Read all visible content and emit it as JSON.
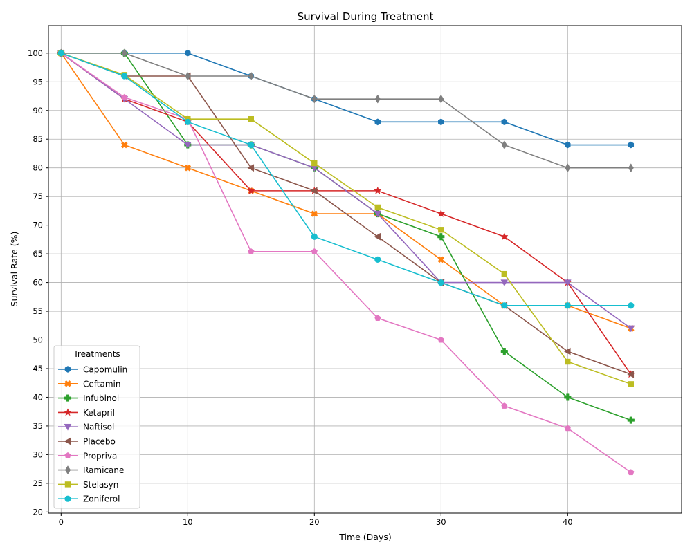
{
  "chart_data": {
    "type": "line",
    "title": "Survival During Treatment",
    "xlabel": "Time (Days)",
    "ylabel": "Survival Rate (%)",
    "xlim": [
      -1,
      49
    ],
    "ylim": [
      19.8,
      104.8
    ],
    "x_ticks": [
      0,
      10,
      20,
      30,
      40
    ],
    "y_ticks": [
      20,
      25,
      30,
      35,
      40,
      45,
      50,
      55,
      60,
      65,
      70,
      75,
      80,
      85,
      90,
      95,
      100
    ],
    "grid": true,
    "legend": {
      "title": "Treatments",
      "placement": "lower-left"
    },
    "x": [
      0,
      5,
      10,
      15,
      20,
      25,
      30,
      35,
      40,
      45
    ],
    "series": [
      {
        "name": "Capomulin",
        "color": "#1f77b4",
        "marker": "hexagon",
        "values": [
          100,
          100,
          100,
          96,
          92,
          88,
          88,
          88,
          84,
          84
        ]
      },
      {
        "name": "Ceftamin",
        "color": "#ff7f0e",
        "marker": "x",
        "values": [
          100,
          84,
          80,
          76,
          72,
          72,
          64,
          56,
          56,
          52
        ]
      },
      {
        "name": "Infubinol",
        "color": "#2ca02c",
        "marker": "plus",
        "values": [
          100,
          100,
          84,
          84,
          80,
          72,
          68,
          48,
          40,
          36
        ]
      },
      {
        "name": "Ketapril",
        "color": "#d62728",
        "marker": "star",
        "values": [
          100,
          92,
          88,
          76,
          76,
          76,
          72,
          68,
          60,
          44
        ]
      },
      {
        "name": "Naftisol",
        "color": "#9467bd",
        "marker": "triangle-down",
        "values": [
          100,
          92,
          84,
          84,
          80,
          72,
          60,
          60,
          60,
          52
        ]
      },
      {
        "name": "Placebo",
        "color": "#8c564b",
        "marker": "triangle-left",
        "values": [
          100,
          96,
          96,
          80,
          76,
          68,
          60,
          56,
          48,
          44
        ]
      },
      {
        "name": "Propriva",
        "color": "#e377c2",
        "marker": "pentagon",
        "values": [
          100,
          92.3,
          88.5,
          65.4,
          65.4,
          53.8,
          50,
          38.5,
          34.6,
          26.9
        ]
      },
      {
        "name": "Ramicane",
        "color": "#7f7f7f",
        "marker": "diamond",
        "values": [
          100,
          100,
          96,
          96,
          92,
          92,
          92,
          84,
          80,
          80
        ]
      },
      {
        "name": "Stelasyn",
        "color": "#bcbd22",
        "marker": "square",
        "values": [
          100,
          96.2,
          88.5,
          88.5,
          80.8,
          73.1,
          69.2,
          61.5,
          46.2,
          42.3
        ]
      },
      {
        "name": "Zoniferol",
        "color": "#17becf",
        "marker": "circle",
        "values": [
          100,
          96,
          88,
          84,
          68,
          64,
          60,
          56,
          56,
          56
        ]
      }
    ]
  }
}
